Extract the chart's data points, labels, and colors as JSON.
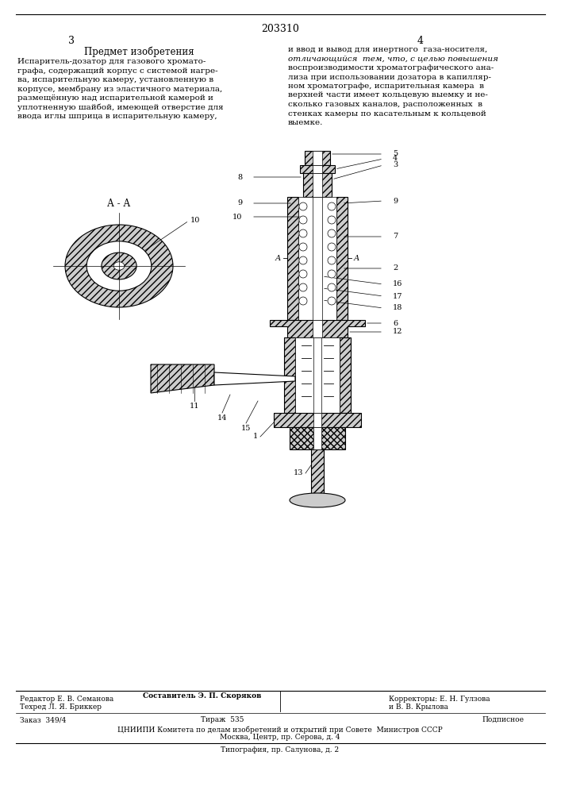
{
  "page_number_center": "203310",
  "page_left": "3",
  "page_right": "4",
  "title_left": "Предмет изобретения",
  "text_left_lines": [
    "Испаритель-дозатор для газового хромато-",
    "графа, содержащий корпус с системой нагре-",
    "ва, испарительную камеру, установленную в",
    "корпусе, мембрану из эластичного материала,",
    "размещённую над испарительной камерой и",
    "уплотненную шайбой, имеющей отверстие для",
    "ввода иглы шприца в испарительную камеру,"
  ],
  "text_right_line1": "и ввод и вывод для инертного  газа-носителя,",
  "text_right_italic": "отличающийся  тем, что, с целью повышения",
  "text_right_rest": [
    "воспроизводимости хроматографического ана-",
    "лиза при использовании дозатора в капилляр-",
    "ном хроматографе, испарительная камера  в",
    "верхней части имеет кольцевую выемку и не-",
    "сколько газовых каналов, расположенных  в",
    "стенках камеры по касательным к кольцевой",
    "выемке."
  ],
  "bottom_editor": "Редактор Е. В. Семанова",
  "bottom_compiler": "Составитель Э. П. Скоряков",
  "bottom_tech": "Техред Л. Я. Бриккер",
  "bottom_correctors": "Корректоры: Е. Н. Гулзова",
  "bottom_correctors2": "и В. В. Крылова",
  "bottom_order": "Заказ  349/4",
  "bottom_tirazh": "Тираж  535",
  "bottom_podpisnoe": "Подписное",
  "bottom_org": "ЦНИИПИ Комитета по делам изобретений и открытий при Совете  Министров СССР",
  "bottom_city": "Москва, Центр, пр. Серова, д. 4",
  "bottom_print": "Типография, пр. Салунова, д. 2",
  "bg_color": "#ffffff",
  "line_color": "#000000"
}
